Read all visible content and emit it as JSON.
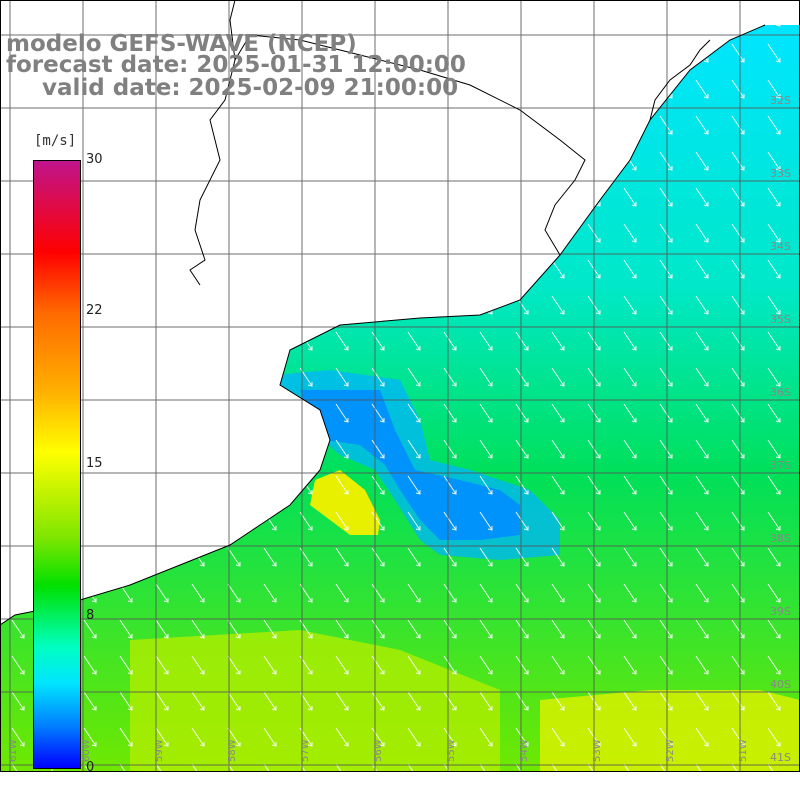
{
  "title": {
    "line1": "modelo GEFS-WAVE (NCEP)",
    "line2": "forecast date: 2025-01-31 12:00:00",
    "line3": "valid date: 2025-02-09 21:00:00"
  },
  "colorbar": {
    "unit": "[m/s]",
    "ticks": [
      "30",
      "22",
      "15",
      "8",
      "0"
    ],
    "colors": [
      "#0000ff",
      "#0080ff",
      "#00e5ff",
      "#00ffc0",
      "#00e000",
      "#7fe600",
      "#ffff00",
      "#ffb000",
      "#ff6a00",
      "#ff0000",
      "#c0148c"
    ]
  },
  "axes": {
    "lat_labels": [
      "32S",
      "33S",
      "34S",
      "35S",
      "36S",
      "37S",
      "38S",
      "39S",
      "40S",
      "41S"
    ],
    "lon_labels": [
      "61W",
      "60W",
      "59W",
      "58W",
      "57W",
      "56W",
      "55W",
      "54W",
      "53W",
      "52W",
      "51W"
    ]
  },
  "colors": {
    "land": "#ffffff",
    "coastline": "#000000",
    "grid": "#555555",
    "arrows": "#ffffff"
  }
}
